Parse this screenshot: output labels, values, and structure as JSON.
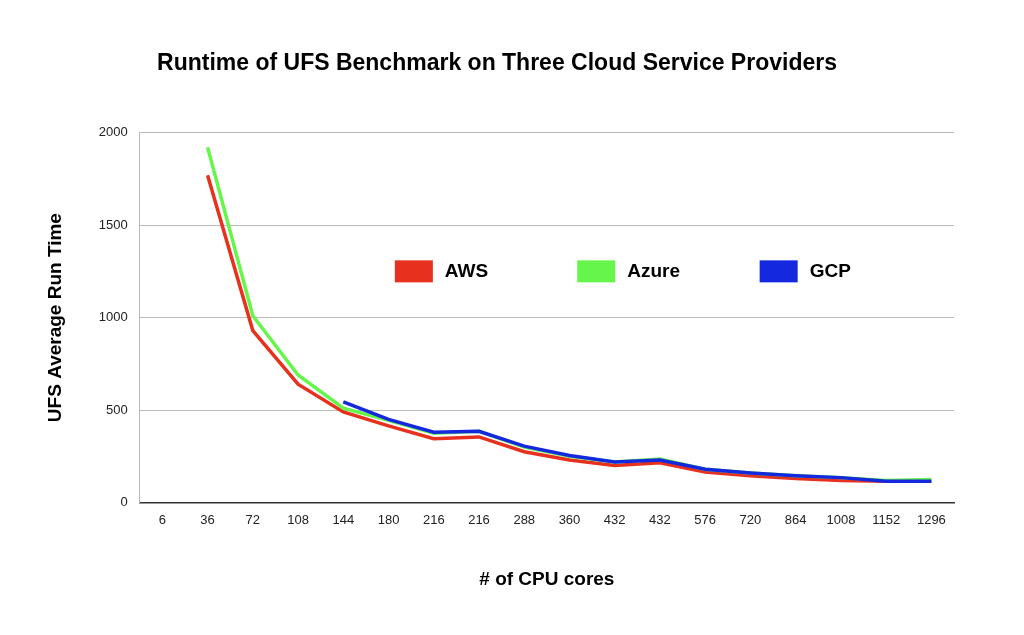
{
  "chart_data": {
    "type": "line",
    "title": "Runtime of UFS Benchmark on Three Cloud Service Providers",
    "x_label": "# of CPU cores",
    "y_label": "UFS Average Run Time",
    "categories": [
      "6",
      "36",
      "72",
      "108",
      "144",
      "180",
      "216",
      "216",
      "288",
      "360",
      "432",
      "432",
      "576",
      "720",
      "864",
      "1008",
      "1152",
      "1296"
    ],
    "series": [
      {
        "name": "AWS",
        "color": "#e8301e",
        "values": [
          null,
          1770,
          930,
          640,
          490,
          415,
          345,
          355,
          275,
          230,
          200,
          215,
          165,
          145,
          130,
          120,
          115,
          115
        ]
      },
      {
        "name": "Azure",
        "color": "#66f54a",
        "values": [
          null,
          1920,
          1010,
          690,
          510,
          445,
          375,
          385,
          300,
          250,
          220,
          235,
          180,
          160,
          145,
          135,
          120,
          125
        ]
      },
      {
        "name": "GCP",
        "color": "#1428e0",
        "values": [
          null,
          null,
          null,
          null,
          545,
          450,
          380,
          385,
          305,
          255,
          220,
          230,
          180,
          160,
          145,
          135,
          115,
          115
        ]
      }
    ],
    "ylim": [
      0,
      2000
    ],
    "yticks": [
      0,
      500,
      1000,
      1500,
      2000
    ],
    "grid": true,
    "legend": "right"
  }
}
